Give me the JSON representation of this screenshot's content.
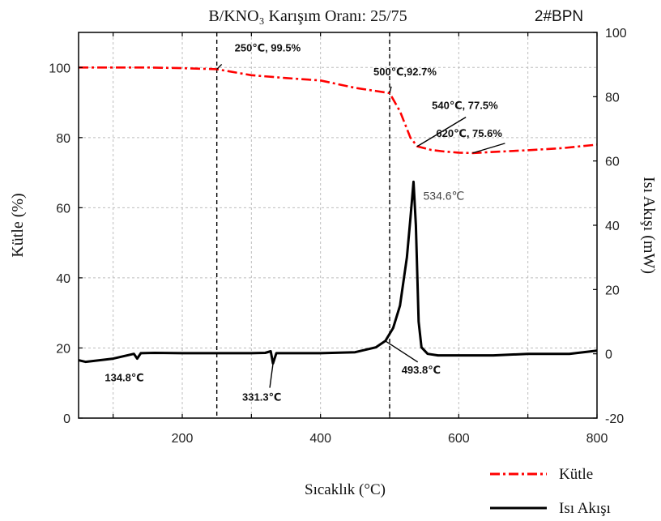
{
  "chart_data": {
    "type": "line",
    "title": "B/KNO₃ Karışım Oranı:  25/75",
    "corner_label": "2#BPN",
    "xlabel": "Sıcaklık (°C)",
    "ylabel_left": "Kütle (%)",
    "ylabel_right": "Isı Akışı (mW)",
    "xlim": [
      50,
      800
    ],
    "ylim_left": [
      0,
      110
    ],
    "ylim_right": [
      -20,
      100
    ],
    "x_ticks": [
      200,
      400,
      600,
      800
    ],
    "y_left_ticks": [
      0,
      20,
      40,
      60,
      80,
      100
    ],
    "y_right_ticks": [
      -20,
      0,
      20,
      40,
      60,
      80,
      100
    ],
    "grid": true,
    "legend_position": "bottom-right",
    "series": [
      {
        "name": "Kütle",
        "axis": "left",
        "color": "#ff0000",
        "style": "dash-dot",
        "x": [
          50,
          100,
          150,
          200,
          250,
          300,
          350,
          400,
          450,
          500,
          515,
          530,
          540,
          560,
          580,
          600,
          620,
          660,
          700,
          750,
          800
        ],
        "y": [
          100,
          100,
          100,
          99.8,
          99.5,
          97.8,
          97,
          96.3,
          94.2,
          92.7,
          87.5,
          80,
          77.5,
          76.5,
          76,
          75.7,
          75.6,
          76,
          76.4,
          77,
          78
        ]
      },
      {
        "name": "Isı Akışı",
        "axis": "right",
        "color": "#000000",
        "style": "solid",
        "x": [
          50,
          60,
          100,
          130,
          134.8,
          140,
          160,
          200,
          250,
          300,
          320,
          328,
          331.3,
          336,
          345,
          400,
          450,
          480,
          493.8,
          505,
          515,
          525,
          530,
          534.6,
          538,
          542,
          546,
          555,
          570,
          600,
          650,
          700,
          760,
          800
        ],
        "y": [
          -2,
          -2.5,
          -1.5,
          0,
          -1.5,
          0.2,
          0.3,
          0.2,
          0.2,
          0.2,
          0.3,
          0.8,
          -3,
          0.2,
          0.2,
          0.2,
          0.5,
          2,
          4,
          8,
          15,
          30,
          42,
          53.5,
          40,
          10,
          2,
          0,
          -0.5,
          -0.5,
          -0.5,
          0,
          0,
          1
        ]
      }
    ],
    "annotations": [
      {
        "text": "250℃, 99.5%",
        "x": 250,
        "y": 99.5,
        "axis": "left"
      },
      {
        "text": "500℃,92.7%",
        "x": 500,
        "y": 92.7,
        "axis": "left"
      },
      {
        "text": "540℃, 77.5%",
        "x": 540,
        "y": 77.5,
        "axis": "left"
      },
      {
        "text": "620℃, 75.6%",
        "x": 620,
        "y": 75.6,
        "axis": "left"
      },
      {
        "text": "534.6℃",
        "x": 534.6,
        "y": 53.5,
        "axis": "right"
      },
      {
        "text": "134.8℃",
        "x": 134.8,
        "y": -1.5,
        "axis": "right"
      },
      {
        "text": "331.3℃",
        "x": 331.3,
        "y": -3,
        "axis": "right"
      },
      {
        "text": "493.8℃",
        "x": 493.8,
        "y": 4,
        "axis": "right"
      }
    ],
    "vertical_markers": [
      250,
      500
    ]
  }
}
